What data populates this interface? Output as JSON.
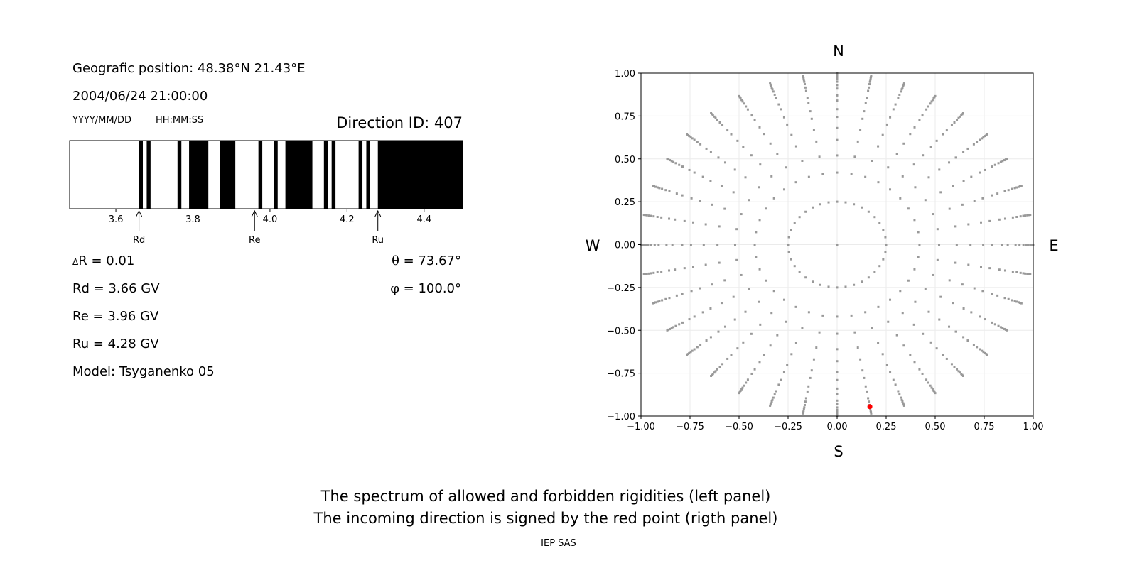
{
  "left_panel": {
    "position": "Geografic position: 48.38°N 21.43°E",
    "datetime": "2004/06/24 21:00:00",
    "date_format": "YYYY/MM/DD",
    "time_format": "HH:MM:SS",
    "direction_id": "Direction ID: 407",
    "delta_r_symbol": "Δ",
    "delta_r_text": "R = 0.01",
    "rd": "Rd = 3.66 GV",
    "re": "Re = 3.96 GV",
    "ru": "Ru = 4.28 GV",
    "model": "Model: Tsyganenko 05",
    "theta_symbol": "θ",
    "theta_text": " = 73.67°",
    "phi_symbol": "φ",
    "phi_text": " = 100.0°"
  },
  "right_panel": {
    "north": "N",
    "south": "S",
    "west": "W",
    "east": "E"
  },
  "footer": {
    "line1": "The spectrum of allowed and forbidden rigidities (left panel)",
    "line2": "The incoming direction is signed by the red point (rigth panel)",
    "credit": "IEP SAS"
  },
  "chart_data": [
    {
      "type": "bar",
      "xlim": [
        3.48,
        4.5
      ],
      "xticks": [
        "3.6",
        "3.8",
        "4.0",
        "4.2",
        "4.4"
      ],
      "xtick_values": [
        3.6,
        3.8,
        4.0,
        4.2,
        4.4
      ],
      "forbidden_color": "#000000",
      "allowed_color": "#ffffff",
      "forbidden_intervals": [
        [
          3.66,
          3.67
        ],
        [
          3.68,
          3.69
        ],
        [
          3.76,
          3.77
        ],
        [
          3.79,
          3.84
        ],
        [
          3.87,
          3.91
        ],
        [
          3.97,
          3.98
        ],
        [
          4.01,
          4.02
        ],
        [
          4.04,
          4.11
        ],
        [
          4.14,
          4.15
        ],
        [
          4.16,
          4.17
        ],
        [
          4.23,
          4.24
        ],
        [
          4.25,
          4.26
        ],
        [
          4.28,
          4.5
        ]
      ],
      "markers": [
        {
          "label": "Rd",
          "value": 3.66
        },
        {
          "label": "Re",
          "value": 3.96
        },
        {
          "label": "Ru",
          "value": 4.28
        }
      ]
    },
    {
      "type": "scatter",
      "xlim": [
        -1,
        1
      ],
      "ylim": [
        -1,
        1
      ],
      "xticks": [
        "−1.00",
        "−0.75",
        "−0.50",
        "−0.25",
        "0.00",
        "0.25",
        "0.50",
        "0.75",
        "1.00"
      ],
      "yticks": [
        "−1.00",
        "−0.75",
        "−0.50",
        "−0.25",
        "0.00",
        "0.25",
        "0.50",
        "0.75",
        "1.00"
      ],
      "tick_values": [
        -1,
        -0.75,
        -0.5,
        -0.25,
        0,
        0.25,
        0.5,
        0.75,
        1
      ],
      "grid": true,
      "point_color": "#999999",
      "azimuth_step_deg": 10,
      "radii": [
        0.25,
        0.42,
        0.52,
        0.61,
        0.68,
        0.745,
        0.79,
        0.84,
        0.87,
        0.91,
        0.93,
        0.95,
        0.964,
        0.974,
        0.985,
        0.993,
        1.0
      ],
      "center_point": [
        0,
        0
      ],
      "highlight": {
        "x": 0.167,
        "y": -0.945,
        "color": "#ff0000"
      }
    }
  ]
}
